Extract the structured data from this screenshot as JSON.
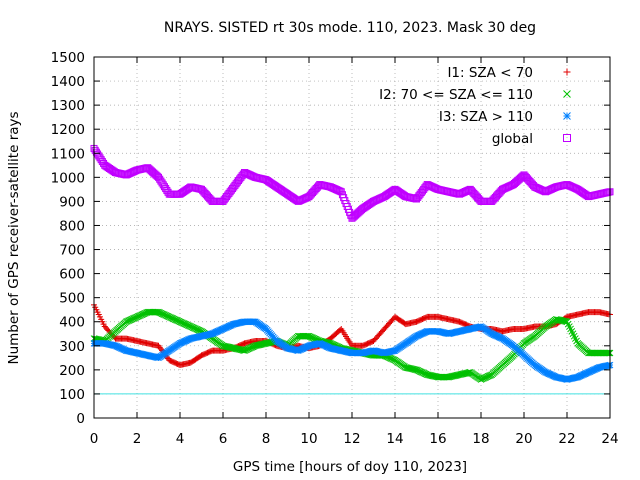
{
  "chart_data": {
    "type": "scatter",
    "title": "NRAYS. SISTED rt 30s mode. 110, 2023. Mask 30 deg",
    "xlabel": "GPS time [hours of doy 110, 2023]",
    "ylabel": "Number of GPS receiver-satellite rays",
    "xlim": [
      0,
      24
    ],
    "ylim": [
      0,
      1500
    ],
    "xticks": [
      0,
      2,
      4,
      6,
      8,
      10,
      12,
      14,
      16,
      18,
      20,
      22,
      24
    ],
    "yticks": [
      0,
      100,
      200,
      300,
      400,
      500,
      600,
      700,
      800,
      900,
      1000,
      1100,
      1200,
      1300,
      1400,
      1500
    ],
    "grid": true,
    "legend_position": "top-right",
    "reference_line": {
      "y": 100,
      "color": "#40e0e0"
    },
    "series": [
      {
        "name": "I1: SZA < 70",
        "marker": "plus",
        "color": "#e00000",
        "x": [
          0,
          0.5,
          1,
          1.5,
          2,
          2.5,
          3,
          3.5,
          4,
          4.5,
          5,
          5.5,
          6,
          6.5,
          7,
          7.5,
          8,
          8.5,
          9,
          9.5,
          10,
          10.5,
          11,
          11.5,
          12,
          12.5,
          13,
          13.5,
          14,
          14.5,
          15,
          15.5,
          16,
          16.5,
          17,
          17.5,
          18,
          18.5,
          19,
          19.5,
          20,
          20.5,
          21,
          21.5,
          22,
          22.5,
          23,
          23.5,
          24
        ],
        "values": [
          470,
          380,
          330,
          330,
          320,
          310,
          300,
          240,
          220,
          230,
          260,
          280,
          280,
          290,
          310,
          320,
          320,
          300,
          290,
          300,
          290,
          300,
          330,
          370,
          300,
          300,
          320,
          370,
          420,
          390,
          400,
          420,
          420,
          410,
          400,
          380,
          370,
          370,
          360,
          370,
          370,
          380,
          380,
          390,
          420,
          430,
          440,
          440,
          430
        ]
      },
      {
        "name": "I2: 70 <= SZA <= 110",
        "marker": "cross",
        "color": "#00c000",
        "x": [
          0,
          0.5,
          1,
          1.5,
          2,
          2.5,
          3,
          3.5,
          4,
          4.5,
          5,
          5.5,
          6,
          6.5,
          7,
          7.5,
          8,
          8.5,
          9,
          9.5,
          10,
          10.5,
          11,
          11.5,
          12,
          12.5,
          13,
          13.5,
          14,
          14.5,
          15,
          15.5,
          16,
          16.5,
          17,
          17.5,
          18,
          18.5,
          19,
          19.5,
          20,
          20.5,
          21,
          21.5,
          22,
          22.5,
          23,
          23.5,
          24
        ],
        "values": [
          330,
          320,
          360,
          400,
          420,
          440,
          440,
          420,
          400,
          380,
          360,
          330,
          300,
          290,
          280,
          300,
          310,
          320,
          300,
          340,
          340,
          320,
          310,
          290,
          280,
          270,
          260,
          260,
          240,
          210,
          200,
          180,
          170,
          170,
          180,
          190,
          160,
          180,
          220,
          260,
          310,
          340,
          380,
          410,
          400,
          310,
          270,
          270,
          270
        ]
      },
      {
        "name": "I3: SZA > 110",
        "marker": "star",
        "color": "#0080ff",
        "x": [
          0,
          0.5,
          1,
          1.5,
          2,
          2.5,
          3,
          3.5,
          4,
          4.5,
          5,
          5.5,
          6,
          6.5,
          7,
          7.5,
          8,
          8.5,
          9,
          9.5,
          10,
          10.5,
          11,
          11.5,
          12,
          12.5,
          13,
          13.5,
          14,
          14.5,
          15,
          15.5,
          16,
          16.5,
          17,
          17.5,
          18,
          18.5,
          19,
          19.5,
          20,
          20.5,
          21,
          21.5,
          22,
          22.5,
          23,
          23.5,
          24
        ],
        "values": [
          310,
          310,
          300,
          280,
          270,
          260,
          250,
          280,
          310,
          330,
          340,
          350,
          370,
          390,
          400,
          400,
          370,
          320,
          290,
          280,
          300,
          310,
          290,
          280,
          270,
          270,
          280,
          270,
          280,
          310,
          340,
          360,
          360,
          350,
          360,
          370,
          380,
          350,
          330,
          300,
          260,
          220,
          190,
          170,
          160,
          170,
          190,
          210,
          220
        ]
      },
      {
        "name": "global",
        "marker": "square",
        "color": "#c000ff",
        "x": [
          0,
          0.5,
          1,
          1.5,
          2,
          2.5,
          3,
          3.5,
          4,
          4.5,
          5,
          5.5,
          6,
          6.5,
          7,
          7.5,
          8,
          8.5,
          9,
          9.5,
          10,
          10.5,
          11,
          11.5,
          12,
          12.5,
          13,
          13.5,
          14,
          14.5,
          15,
          15.5,
          16,
          16.5,
          17,
          17.5,
          18,
          18.5,
          19,
          19.5,
          20,
          20.5,
          21,
          21.5,
          22,
          22.5,
          23,
          23.5,
          24
        ],
        "values": [
          1120,
          1050,
          1020,
          1010,
          1030,
          1040,
          1000,
          930,
          930,
          960,
          950,
          900,
          900,
          960,
          1020,
          1000,
          990,
          960,
          930,
          900,
          920,
          970,
          960,
          940,
          830,
          870,
          900,
          920,
          950,
          920,
          910,
          970,
          950,
          940,
          930,
          950,
          900,
          900,
          950,
          970,
          1010,
          960,
          940,
          960,
          970,
          950,
          920,
          930,
          940
        ]
      }
    ]
  }
}
